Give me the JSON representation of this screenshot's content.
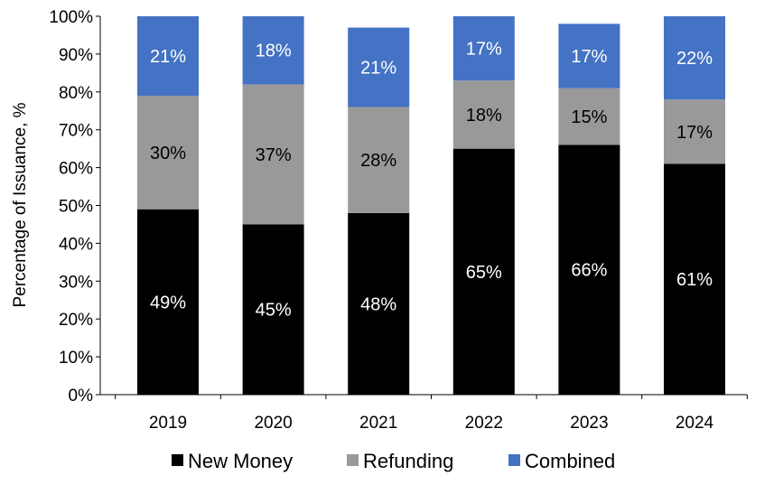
{
  "chart_data": {
    "type": "bar",
    "stacked": true,
    "title": "",
    "xlabel": "",
    "ylabel": "Percentage of Issuance, %",
    "ylim": [
      0,
      100
    ],
    "yticks": [
      "0%",
      "10%",
      "20%",
      "30%",
      "40%",
      "50%",
      "60%",
      "70%",
      "80%",
      "90%",
      "100%"
    ],
    "grid": false,
    "legend_position": "bottom",
    "categories": [
      "2019",
      "2020",
      "2021",
      "2022",
      "2023",
      "2024"
    ],
    "series": [
      {
        "name": "New Money",
        "color": "#000000",
        "label_color": "#ffffff",
        "values": [
          49,
          45,
          48,
          65,
          66,
          61
        ],
        "labels": [
          "49%",
          "45%",
          "48%",
          "65%",
          "66%",
          "61%"
        ]
      },
      {
        "name": "Refunding",
        "color": "#999999",
        "label_color": "#000000",
        "values": [
          30,
          37,
          28,
          18,
          15,
          17
        ],
        "labels": [
          "30%",
          "37%",
          "28%",
          "18%",
          "15%",
          "17%"
        ]
      },
      {
        "name": "Combined",
        "color": "#4472C4",
        "label_color": "#ffffff",
        "values": [
          21,
          18,
          21,
          17,
          17,
          22
        ],
        "labels": [
          "21%",
          "18%",
          "21%",
          "17%",
          "17%",
          "22%"
        ]
      }
    ]
  }
}
